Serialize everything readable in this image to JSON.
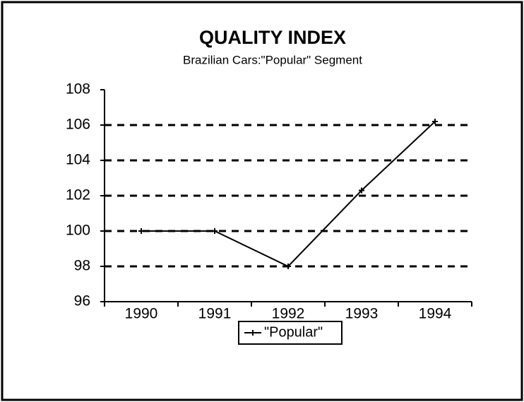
{
  "chart_data": {
    "type": "line",
    "title": "QUALITY INDEX",
    "subtitle": "Brazilian Cars:\"Popular\" Segment",
    "categories": [
      "1990",
      "1991",
      "1992",
      "1993",
      "1994"
    ],
    "series": [
      {
        "name": "\"Popular\"",
        "color": "#000000",
        "values": [
          100,
          100,
          98,
          102.3,
          106.2
        ]
      }
    ],
    "ylim": [
      96,
      108
    ],
    "yticks": [
      96,
      98,
      100,
      102,
      104,
      106,
      108
    ],
    "grid": true,
    "legend": "bottom"
  }
}
